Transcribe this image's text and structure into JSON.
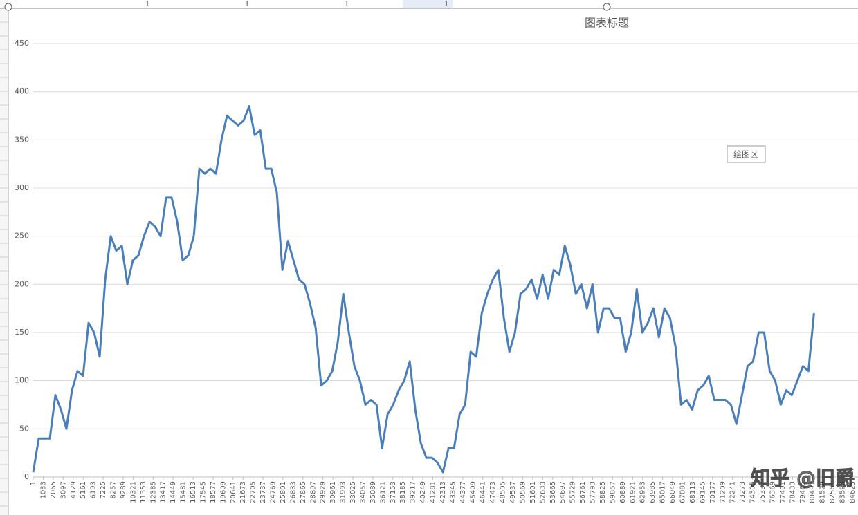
{
  "header_cells": [
    "1",
    "1",
    "1",
    "1"
  ],
  "tooltip": "绘图区",
  "watermark": "知乎 @旧爵",
  "chart_data": {
    "type": "line",
    "title": "图表标题",
    "color": "#4a7ebb",
    "grid": true,
    "xlim": [
      1,
      85200
    ],
    "ylim": [
      0,
      450
    ],
    "yticks": [
      0,
      50,
      100,
      150,
      200,
      250,
      300,
      350,
      400,
      450
    ],
    "xticks": [
      1,
      1033,
      2065,
      3097,
      4129,
      5161,
      6193,
      7225,
      8257,
      9289,
      10321,
      11353,
      12385,
      13417,
      14449,
      15481,
      16513,
      17545,
      18577,
      19609,
      20641,
      21673,
      22705,
      23737,
      24769,
      25801,
      26833,
      27865,
      28897,
      29929,
      30961,
      31993,
      33025,
      34057,
      35089,
      36121,
      37153,
      38185,
      39217,
      40249,
      41281,
      42313,
      43345,
      44377,
      45409,
      46441,
      47473,
      48505,
      49537,
      50569,
      51601,
      52633,
      53665,
      54697,
      55729,
      56761,
      57793,
      58825,
      59857,
      60889,
      61921,
      62953,
      63985,
      65017,
      66049,
      67081,
      68113,
      69145,
      70177,
      71209,
      72241,
      73273,
      74305,
      75337,
      76369,
      77401,
      78433,
      79465,
      80497,
      81529,
      82561,
      83593,
      84625
    ],
    "x": [
      1,
      573,
      1145,
      1717,
      2289,
      2861,
      3433,
      4005,
      4577,
      5149,
      5721,
      6293,
      6865,
      7437,
      8009,
      8581,
      9153,
      9725,
      10297,
      10869,
      11441,
      12013,
      12585,
      13157,
      13729,
      14301,
      14873,
      15445,
      16017,
      16589,
      17161,
      17733,
      18305,
      18877,
      19449,
      20021,
      20593,
      21165,
      21737,
      22309,
      22881,
      23453,
      24025,
      24597,
      25169,
      25741,
      26313,
      26885,
      27457,
      28029,
      28601,
      29173,
      29745,
      30317,
      30889,
      31461,
      32033,
      32605,
      33177,
      33749,
      34321,
      34893,
      35465,
      36037,
      36609,
      37181,
      37753,
      38325,
      38897,
      39469,
      40041,
      40613,
      41185,
      41757,
      42329,
      42901,
      43473,
      44045,
      44617,
      45189,
      45761,
      46333,
      46905,
      47477,
      48049,
      48621,
      49193,
      49765,
      50337,
      50909,
      51481,
      52053,
      52625,
      53197,
      53769,
      54341,
      54913,
      55485,
      56057,
      56629,
      57201,
      57773,
      58345,
      58917,
      59489,
      60061,
      60633,
      61205,
      61777,
      62349,
      62921,
      63493,
      64065,
      64637,
      65209,
      65781,
      66353,
      66925,
      67497,
      68069,
      68641,
      69213,
      69785,
      70357,
      70929,
      71501,
      72073,
      72645,
      73217,
      73789,
      74361,
      74933,
      75505,
      76077,
      76649,
      77221,
      77793,
      78365,
      78937,
      79509,
      80081,
      80653
    ],
    "values": [
      5,
      40,
      40,
      40,
      85,
      70,
      50,
      90,
      110,
      105,
      160,
      150,
      125,
      205,
      250,
      235,
      240,
      200,
      225,
      230,
      250,
      265,
      260,
      250,
      290,
      290,
      265,
      225,
      230,
      250,
      320,
      315,
      320,
      315,
      350,
      375,
      370,
      365,
      370,
      385,
      355,
      360,
      320,
      320,
      295,
      215,
      245,
      225,
      205,
      200,
      180,
      155,
      95,
      100,
      110,
      140,
      190,
      150,
      115,
      100,
      75,
      80,
      75,
      30,
      65,
      75,
      90,
      100,
      120,
      70,
      35,
      20,
      20,
      15,
      5,
      30,
      30,
      65,
      75,
      130,
      125,
      170,
      190,
      205,
      215,
      165,
      130,
      150,
      190,
      195,
      205,
      185,
      210,
      185,
      215,
      210,
      240,
      220,
      190,
      200,
      175,
      200,
      150,
      175,
      175,
      165,
      165,
      130,
      150,
      195,
      150,
      160,
      175,
      145,
      175,
      165,
      135,
      75,
      80,
      70,
      90,
      95,
      105,
      80,
      80,
      80,
      75,
      55,
      85,
      115,
      120,
      150,
      150,
      110,
      100,
      75,
      90,
      85,
      100,
      115,
      110,
      170
    ]
  }
}
